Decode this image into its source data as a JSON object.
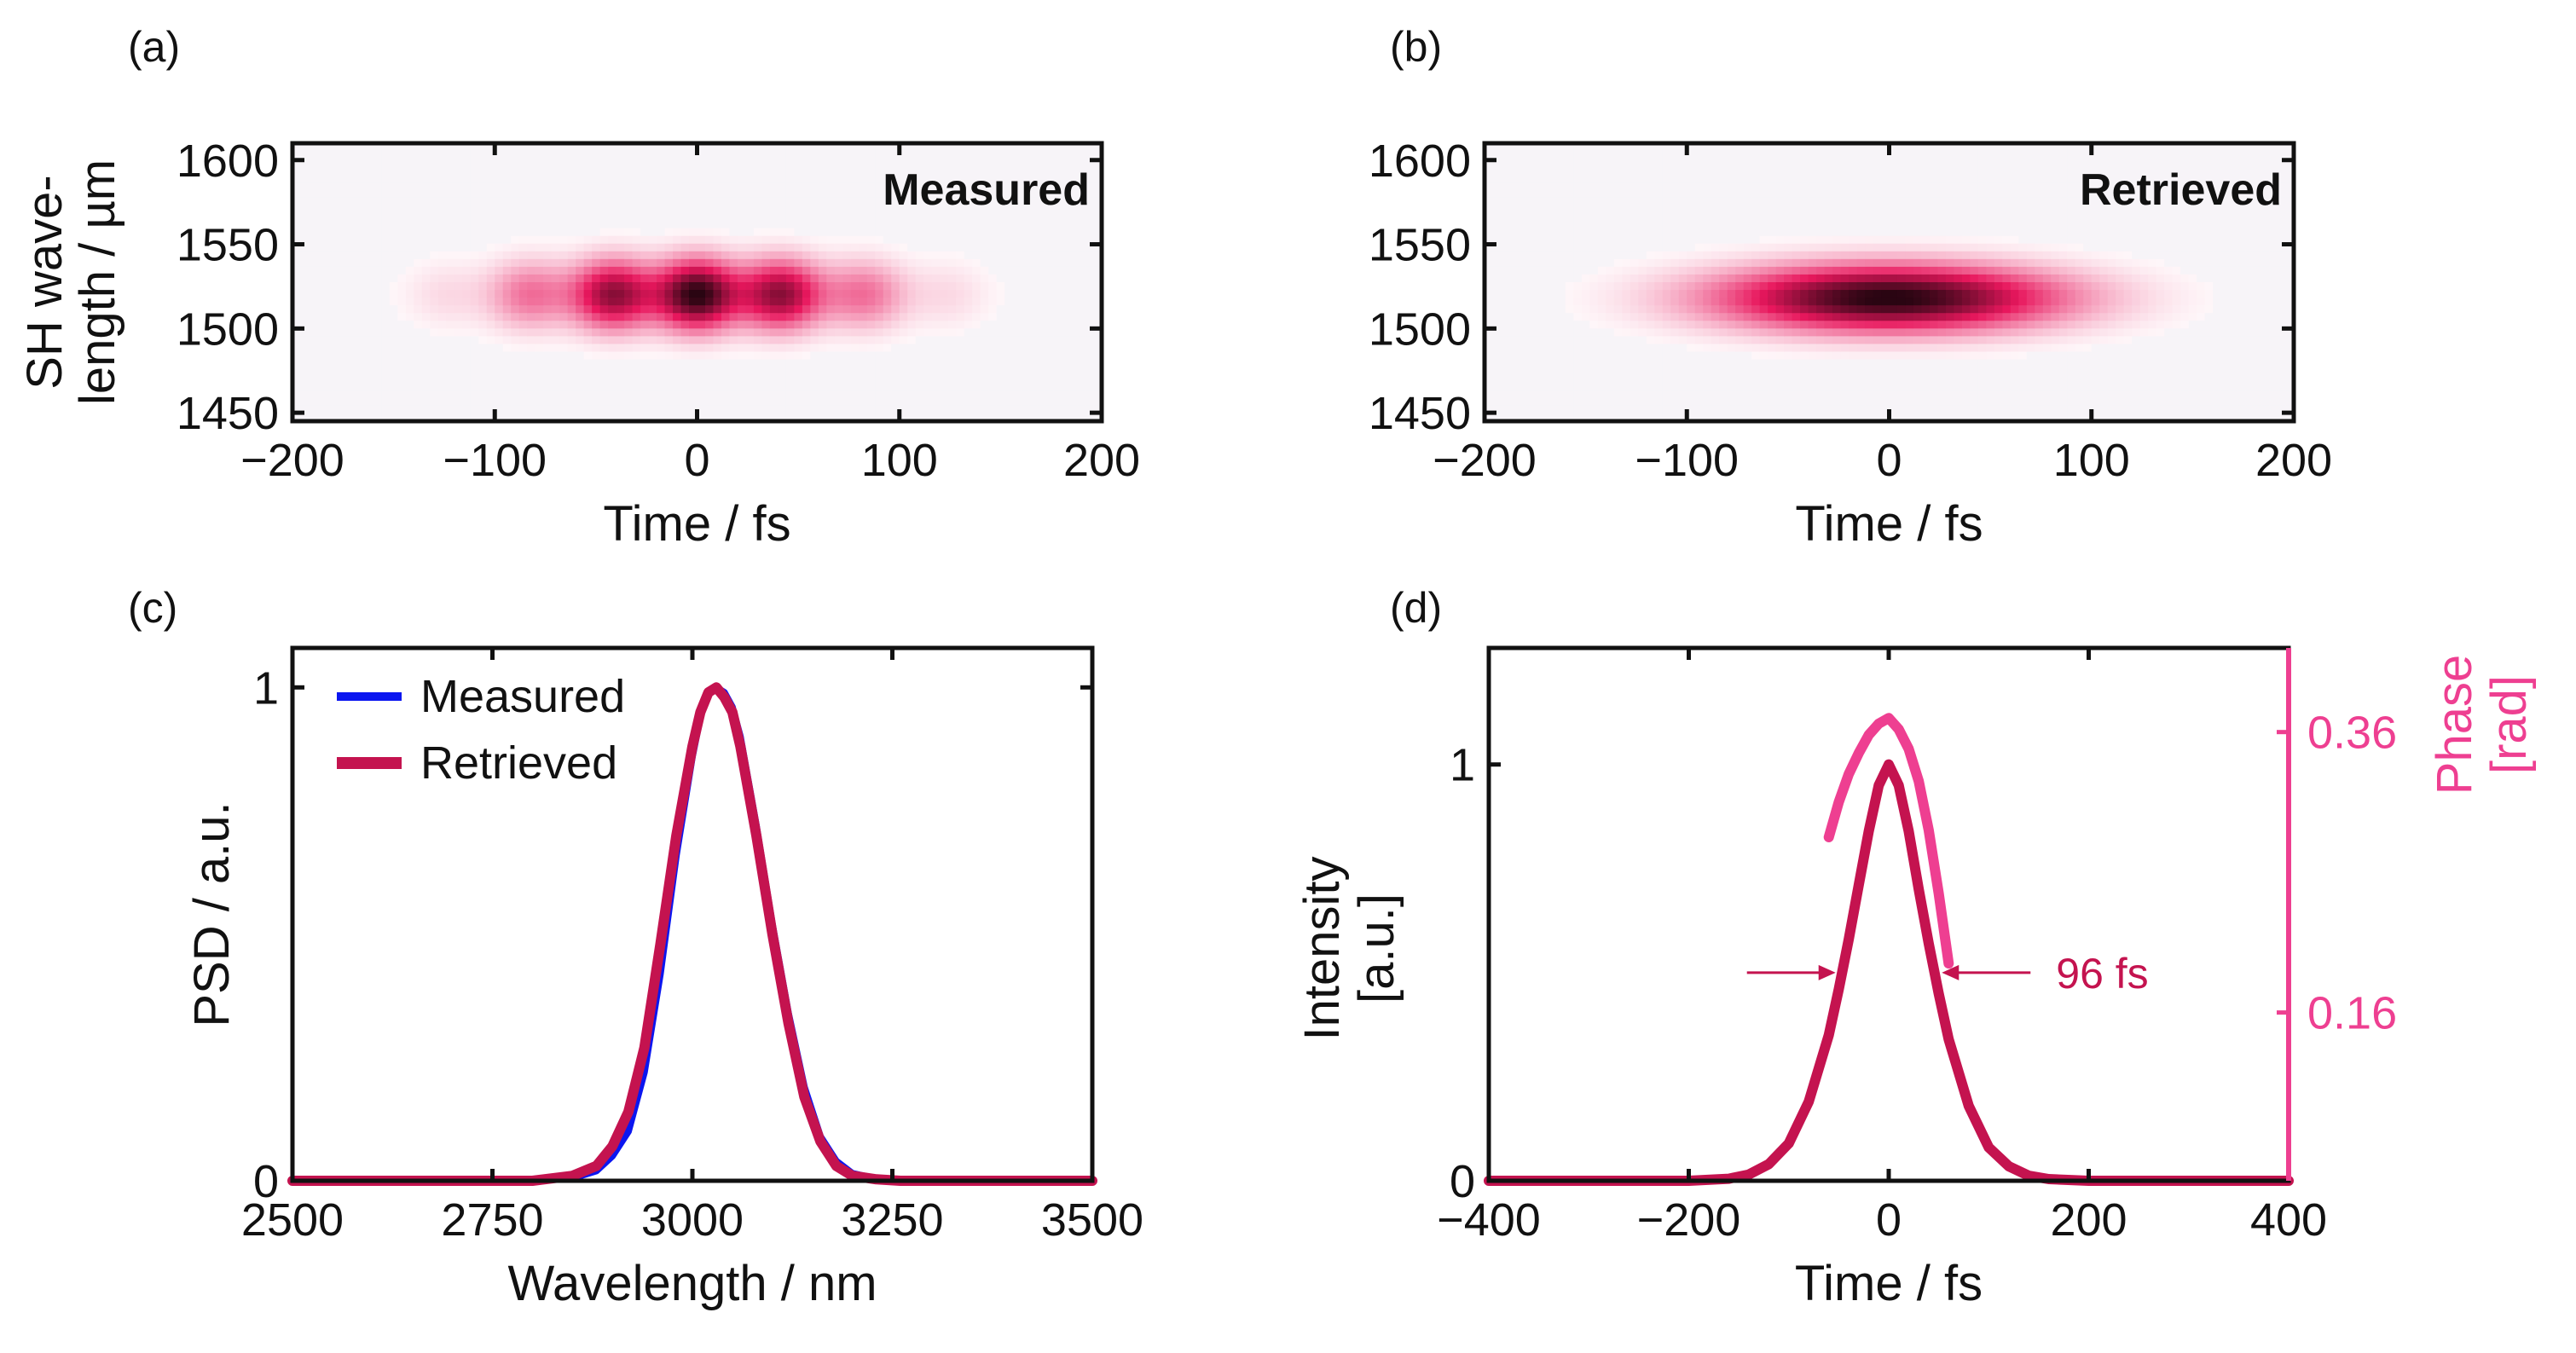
{
  "chart_data": [
    {
      "panel": "(a)",
      "type": "heatmap",
      "inset_label": "Measured",
      "xlabel": "Time / fs",
      "ylabel_lines": [
        "SH wave-",
        "length / µm"
      ],
      "xlim": [
        -200,
        200
      ],
      "ylim": [
        1445,
        1610
      ],
      "xticks": [
        -200,
        -100,
        0,
        100,
        200
      ],
      "xtick_labels": [
        "−200",
        "−100",
        "0",
        "100",
        "200"
      ],
      "yticks": [
        1450,
        1500,
        1550,
        1600
      ],
      "ytick_labels": [
        "1450",
        "1500",
        "1550",
        "1600"
      ],
      "grid": false,
      "colormap": [
        "#ffffff",
        "#e8175d",
        "#2a0512"
      ],
      "features": {
        "center_time_fs": 0,
        "center_wavelength": 1520,
        "time_width_fs": 82,
        "wavelength_width": 20,
        "fringes": true
      }
    },
    {
      "panel": "(b)",
      "type": "heatmap",
      "inset_label": "Retrieved",
      "xlabel": "Time / fs",
      "xlim": [
        -200,
        200
      ],
      "ylim": [
        1445,
        1610
      ],
      "xticks": [
        -200,
        -100,
        0,
        100,
        200
      ],
      "xtick_labels": [
        "−200",
        "−100",
        "0",
        "100",
        "200"
      ],
      "yticks": [
        1450,
        1500,
        1550,
        1600
      ],
      "ytick_labels": [
        "1450",
        "1500",
        "1550",
        "1600"
      ],
      "grid": false,
      "colormap": [
        "#ffffff",
        "#e8175d",
        "#2a0512"
      ],
      "features": {
        "center_time_fs": 0,
        "center_wavelength": 1518,
        "time_width_fs": 82,
        "wavelength_width": 19,
        "fringes": false
      }
    },
    {
      "panel": "(c)",
      "type": "line",
      "xlabel": "Wavelength / nm",
      "ylabel": "PSD / a.u.",
      "xlim": [
        2500,
        3500
      ],
      "ylim": [
        0,
        1.08
      ],
      "xticks": [
        2500,
        2750,
        3000,
        3250,
        3500
      ],
      "xtick_labels": [
        "2500",
        "2750",
        "3000",
        "3250",
        "3500"
      ],
      "yticks": [
        0,
        1
      ],
      "ytick_labels": [
        "0",
        "1"
      ],
      "legend_position": "top-left",
      "grid": false,
      "series": [
        {
          "name": "Measured",
          "color": "#0b16f0",
          "x": [
            2500,
            2800,
            2850,
            2880,
            2900,
            2920,
            2940,
            2960,
            2980,
            3000,
            3010,
            3020,
            3030,
            3040,
            3050,
            3060,
            3080,
            3100,
            3120,
            3140,
            3160,
            3180,
            3200,
            3230,
            3260,
            3300,
            3500
          ],
          "y": [
            0,
            0,
            0.005,
            0.02,
            0.05,
            0.1,
            0.22,
            0.42,
            0.66,
            0.86,
            0.94,
            0.99,
            1.0,
            0.99,
            0.96,
            0.9,
            0.72,
            0.52,
            0.34,
            0.19,
            0.09,
            0.04,
            0.015,
            0.004,
            0.001,
            0,
            0
          ]
        },
        {
          "name": "Retrieved",
          "color": "#c4134f",
          "x": [
            2500,
            2800,
            2850,
            2880,
            2900,
            2920,
            2940,
            2960,
            2980,
            3000,
            3010,
            3020,
            3030,
            3040,
            3050,
            3060,
            3080,
            3100,
            3120,
            3140,
            3160,
            3180,
            3200,
            3230,
            3260,
            3300,
            3500
          ],
          "y": [
            0,
            0,
            0.01,
            0.03,
            0.07,
            0.14,
            0.27,
            0.48,
            0.7,
            0.88,
            0.95,
            0.99,
            1.0,
            0.98,
            0.95,
            0.88,
            0.7,
            0.5,
            0.32,
            0.17,
            0.08,
            0.03,
            0.01,
            0.003,
            0,
            0,
            0
          ]
        }
      ]
    },
    {
      "panel": "(d)",
      "type": "line",
      "xlabel": "Time / fs",
      "ylabel_lines": [
        "Intensity",
        "[a.u.]"
      ],
      "y2label_lines": [
        "Phase",
        "[rad]"
      ],
      "xlim": [
        -400,
        400
      ],
      "ylim": [
        0,
        1.28
      ],
      "y2lim": [
        0.04,
        0.42
      ],
      "xticks": [
        -400,
        -200,
        0,
        200,
        400
      ],
      "xtick_labels": [
        "−400",
        "−200",
        "0",
        "200",
        "400"
      ],
      "yticks": [
        0,
        1
      ],
      "ytick_labels": [
        "0",
        "1"
      ],
      "y2ticks": [
        0.16,
        0.36
      ],
      "y2tick_labels": [
        "0.16",
        "0.36"
      ],
      "annotation": {
        "text": "96 fs",
        "fwhm_fs": 96,
        "at_intensity": 0.5
      },
      "grid": false,
      "series": [
        {
          "name": "Intensity",
          "color": "#c4134f",
          "axis": "left",
          "x": [
            -400,
            -200,
            -160,
            -140,
            -120,
            -100,
            -80,
            -60,
            -50,
            -40,
            -30,
            -20,
            -10,
            0,
            10,
            20,
            30,
            40,
            50,
            60,
            80,
            100,
            120,
            140,
            160,
            200,
            400
          ],
          "y": [
            0,
            0,
            0.005,
            0.015,
            0.04,
            0.09,
            0.19,
            0.35,
            0.46,
            0.58,
            0.71,
            0.84,
            0.95,
            1.0,
            0.95,
            0.84,
            0.7,
            0.57,
            0.45,
            0.34,
            0.18,
            0.08,
            0.035,
            0.012,
            0.004,
            0,
            0
          ]
        },
        {
          "name": "Phase",
          "color": "#ee3f91",
          "axis": "right",
          "x": [
            -60,
            -50,
            -40,
            -30,
            -20,
            -10,
            0,
            10,
            20,
            30,
            40,
            50,
            60
          ],
          "y": [
            0.285,
            0.31,
            0.33,
            0.345,
            0.358,
            0.366,
            0.37,
            0.362,
            0.348,
            0.325,
            0.29,
            0.245,
            0.195
          ]
        }
      ]
    }
  ]
}
